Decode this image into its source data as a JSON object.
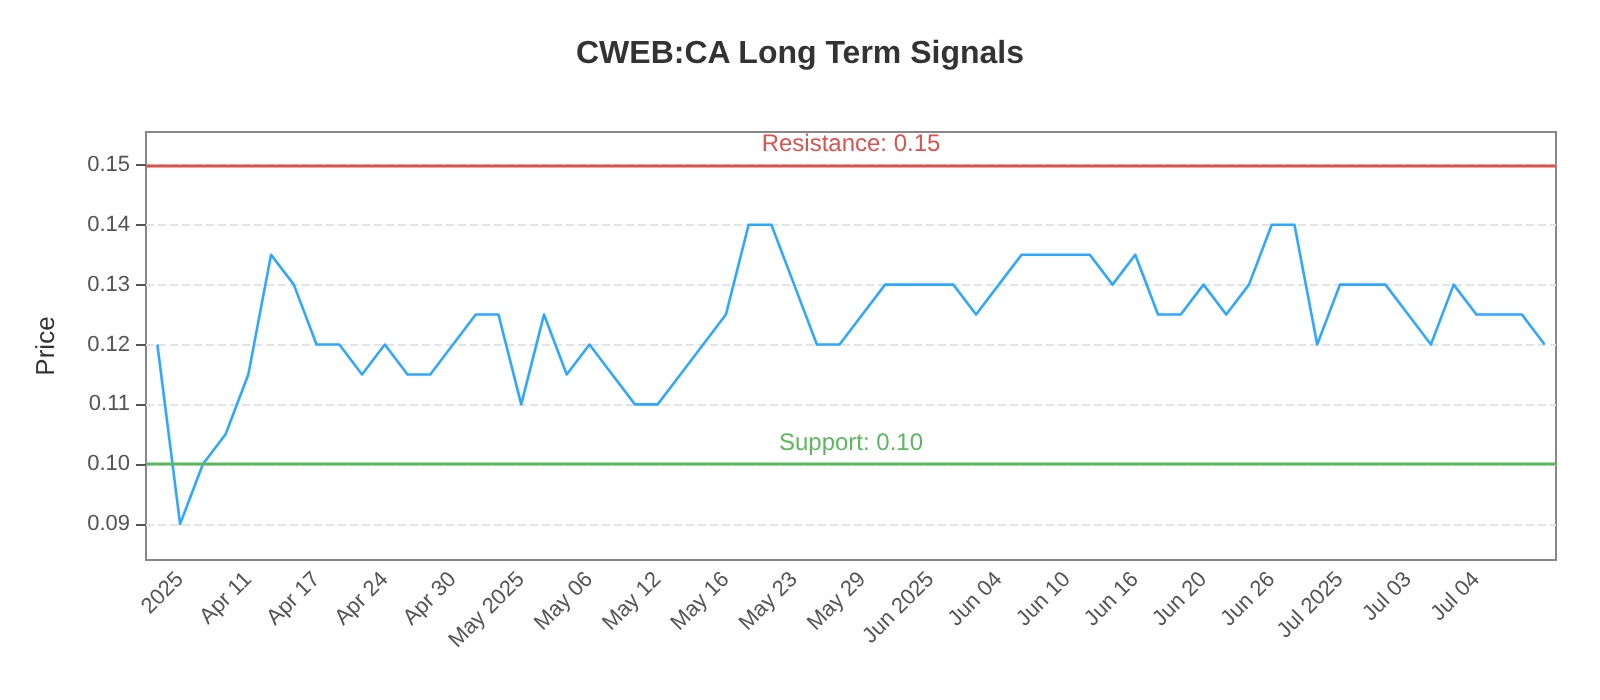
{
  "chart_data": {
    "type": "line",
    "title": "CWEB:CA Long Term Signals",
    "ylabel": "Price",
    "categories": [
      null,
      "2025",
      null,
      null,
      "Apr 11",
      null,
      null,
      "Apr 17",
      null,
      null,
      "Apr 24",
      null,
      null,
      "Apr 30",
      null,
      null,
      "May 2025",
      null,
      null,
      "May 06",
      null,
      null,
      "May 12",
      null,
      null,
      "May 16",
      null,
      null,
      "May 23",
      null,
      null,
      "May 29",
      null,
      null,
      "Jun 2025",
      null,
      null,
      "Jun 04",
      null,
      null,
      "Jun 10",
      null,
      null,
      "Jun 16",
      null,
      null,
      "Jun 20",
      null,
      null,
      "Jun 26",
      null,
      null,
      "Jul 2025",
      null,
      null,
      "Jul 03",
      null,
      null,
      "Jul 04",
      null,
      null,
      null
    ],
    "series": [
      {
        "color": "#2ea8ff",
        "values": [
          0.12,
          0.09,
          0.1,
          0.105,
          0.115,
          0.135,
          0.13,
          0.12,
          0.12,
          0.115,
          0.12,
          0.115,
          0.115,
          0.12,
          0.125,
          0.125,
          0.11,
          0.125,
          0.115,
          0.12,
          0.115,
          0.11,
          0.11,
          0.115,
          0.12,
          0.125,
          0.14,
          0.14,
          0.13,
          0.12,
          0.12,
          0.125,
          0.13,
          0.13,
          0.13,
          0.13,
          0.125,
          0.13,
          0.135,
          0.135,
          0.135,
          0.135,
          0.13,
          0.135,
          0.125,
          0.125,
          0.13,
          0.125,
          0.13,
          0.14,
          0.14,
          0.12,
          0.13,
          0.13,
          0.13,
          0.125,
          0.12,
          0.13,
          0.125,
          0.125,
          0.125,
          0.12
        ]
      }
    ],
    "ylim": [
      0.084,
      0.1555
    ],
    "yticks": [
      0.09,
      {
        "value": 0.1,
        "label": "0.10"
      },
      0.11,
      0.12,
      0.13,
      0.14,
      0.15
    ],
    "grid": "y",
    "marker": "none",
    "line_style": "solid",
    "ref_lines": [
      {
        "axis": "y",
        "value": 0.15,
        "label": "Resistance: 0.15",
        "color": "#d9534f"
      },
      {
        "axis": "y",
        "value": 0.1,
        "label": "Support: 0.10",
        "color": "#5cb85c"
      }
    ]
  }
}
